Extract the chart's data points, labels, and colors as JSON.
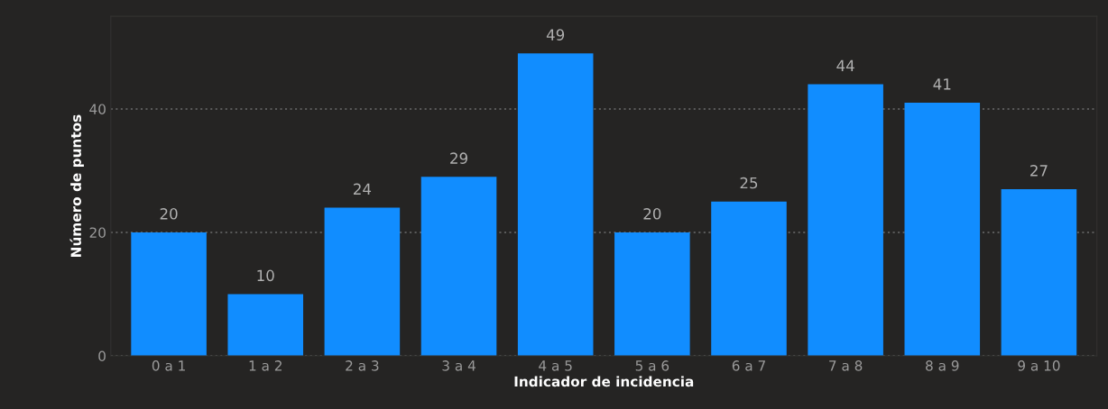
{
  "chart_data": {
    "type": "bar",
    "xlabel": "Indicador de incidencia",
    "ylabel": "Número de puntos",
    "categories": [
      "0 a 1",
      "1 a 2",
      "2 a 3",
      "3 a 4",
      "4 a 5",
      "5 a 6",
      "6 a 7",
      "7 a 8",
      "8 a 9",
      "9 a 10"
    ],
    "values": [
      20,
      10,
      24,
      29,
      49,
      20,
      25,
      44,
      41,
      27
    ],
    "color": "#118dff",
    "ylim": [
      0,
      55
    ],
    "yticks": [
      0,
      20,
      40
    ],
    "grid": "y",
    "data_labels": true
  }
}
